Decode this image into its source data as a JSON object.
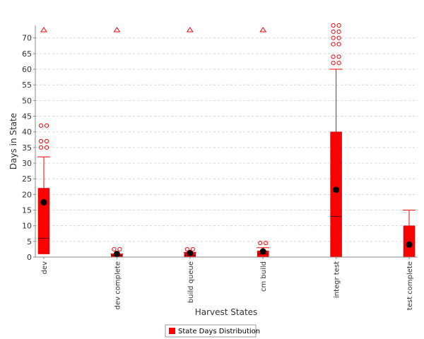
{
  "chart_data": {
    "type": "boxplot",
    "xlabel": "Harvest States",
    "ylabel": "Days in State",
    "ylim": [
      0,
      74
    ],
    "yticks": [
      0,
      5,
      10,
      15,
      20,
      25,
      30,
      35,
      40,
      45,
      50,
      55,
      60,
      65,
      70
    ],
    "grid": true,
    "legend_position": "bottom",
    "series": [
      {
        "name": "State Days Distribution",
        "color": "#ff0000"
      }
    ],
    "categories": [
      "dev",
      "dev complete",
      "build queue",
      "cm build",
      "integr test",
      "test complete"
    ],
    "boxes": [
      {
        "q1": 1,
        "median": 6,
        "q3": 22,
        "mean": 17.5,
        "whisker_low": 0,
        "whisker_high": 32,
        "outliers": [
          35,
          35,
          37,
          37,
          42,
          42
        ],
        "far_outlier": true
      },
      {
        "q1": 0,
        "median": 0.5,
        "q3": 1,
        "mean": 1,
        "whisker_low": 0,
        "whisker_high": 1,
        "outliers": [
          2.5,
          2.5
        ],
        "far_outlier": true
      },
      {
        "q1": 0,
        "median": 0.5,
        "q3": 1.5,
        "mean": 1.3,
        "whisker_low": 0,
        "whisker_high": 1.5,
        "outliers": [
          2.5,
          2.5
        ],
        "far_outlier": true
      },
      {
        "q1": 0,
        "median": 1,
        "q3": 2,
        "mean": 1.8,
        "whisker_low": 0,
        "whisker_high": 3,
        "outliers": [
          4.5,
          4.5
        ],
        "far_outlier": true
      },
      {
        "q1": 0,
        "median": 13,
        "q3": 40,
        "mean": 21.5,
        "whisker_low": 0,
        "whisker_high": 60,
        "outliers": [
          62,
          62,
          64,
          64,
          68,
          68,
          70,
          70,
          72,
          72,
          74,
          74
        ],
        "far_outlier": false
      },
      {
        "q1": 0,
        "median": 0,
        "q3": 10,
        "mean": 4,
        "whisker_low": 0,
        "whisker_high": 15,
        "outliers": [],
        "far_outlier": false
      }
    ]
  }
}
